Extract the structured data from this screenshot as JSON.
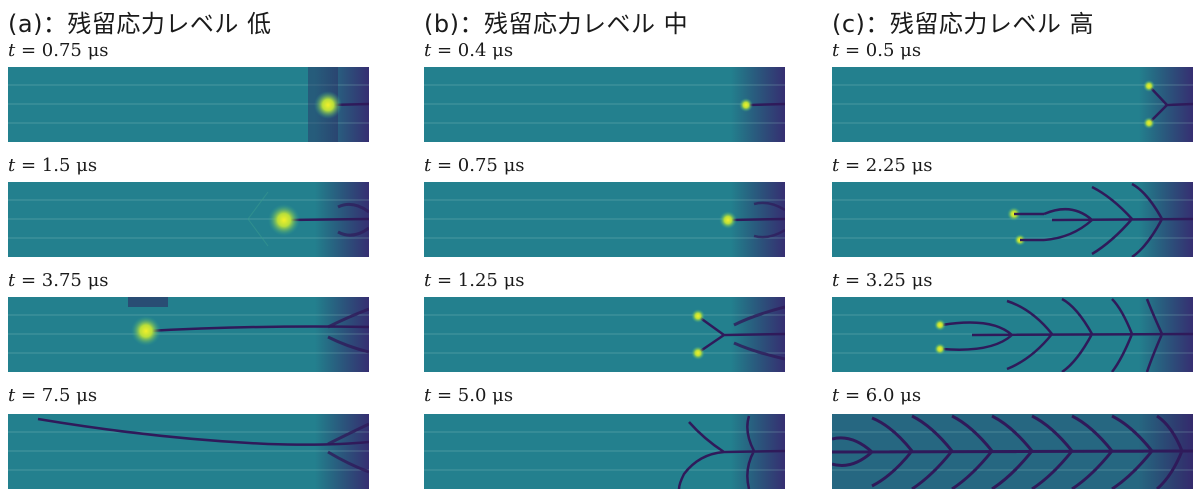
{
  "columns": [
    {
      "title": "(a)：残留応力レベル 低",
      "frames": [
        {
          "t_var": "t",
          "t_value": "= 0.75 μs"
        },
        {
          "t_var": "t",
          "t_value": "= 1.5 μs"
        },
        {
          "t_var": "t",
          "t_value": "= 3.75 μs"
        },
        {
          "t_var": "t",
          "t_value": "= 7.5 μs"
        }
      ]
    },
    {
      "title": "(b)：残留応力レベル 中",
      "frames": [
        {
          "t_var": "t",
          "t_value": "= 0.4 μs"
        },
        {
          "t_var": "t",
          "t_value": "= 0.75 μs"
        },
        {
          "t_var": "t",
          "t_value": "= 1.25 μs"
        },
        {
          "t_var": "t",
          "t_value": "= 5.0 μs"
        }
      ]
    },
    {
      "title": "(c)：残留応力レベル 高",
      "frames": [
        {
          "t_var": "t",
          "t_value": "= 0.5 μs"
        },
        {
          "t_var": "t",
          "t_value": "= 2.25 μs"
        },
        {
          "t_var": "t",
          "t_value": "= 3.25 μs"
        },
        {
          "t_var": "t",
          "t_value": "= 6.0 μs"
        }
      ]
    }
  ],
  "colors": {
    "field": "#23808e",
    "field_light": "#2a9c8c",
    "crack": "#2f1a5a",
    "dark": "#3b1a6b",
    "tip_core": "#f2f02a",
    "tip_glow": "#7fd34e"
  }
}
